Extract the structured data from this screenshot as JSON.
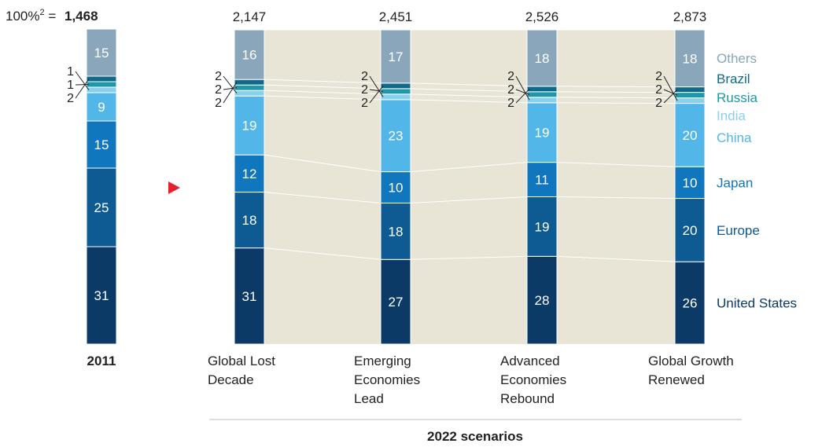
{
  "header": {
    "prefix": "100%",
    "superscript": "2",
    "equals": " =",
    "total": "1,468"
  },
  "footer_title": "2022 scenarios",
  "colors": {
    "United States": "#0b3a66",
    "Europe": "#0e5a92",
    "Japan": "#1077bf",
    "China": "#53b6e8",
    "India": "#8ad0ec",
    "Russia": "#1e97a9",
    "Brazil": "#0e6a88",
    "Others": "#8aa6bb",
    "background": "#e8e4d6",
    "arrow": "#e8202a",
    "connector": "#ffffff"
  },
  "chart_data": {
    "type": "stacked-bar",
    "segment_order": [
      "United States",
      "Europe",
      "Japan",
      "China",
      "India",
      "Russia",
      "Brazil",
      "Others"
    ],
    "bars": [
      {
        "label": "2011",
        "label_bold": true,
        "total": "1,468",
        "values": {
          "United States": 31,
          "Europe": 25,
          "Japan": 15,
          "China": 9,
          "India": 1,
          "Russia": 1,
          "Brazil": 2,
          "Others": 15
        }
      },
      {
        "label": "Global Lost Decade",
        "label_lines": [
          "Global Lost",
          "Decade"
        ],
        "total": "2,147",
        "values": {
          "United States": 31,
          "Europe": 18,
          "Japan": 12,
          "China": 19,
          "India": 2,
          "Russia": 2,
          "Brazil": 2,
          "Others": 16
        }
      },
      {
        "label": "Emerging Economies Lead",
        "label_lines": [
          "Emerging",
          "Economies",
          "Lead"
        ],
        "total": "2,451",
        "values": {
          "United States": 27,
          "Europe": 18,
          "Japan": 10,
          "China": 23,
          "India": 2,
          "Russia": 2,
          "Brazil": 2,
          "Others": 17
        }
      },
      {
        "label": "Advanced Economies Rebound",
        "label_lines": [
          "Advanced",
          "Economies",
          "Rebound"
        ],
        "total": "2,526",
        "values": {
          "United States": 28,
          "Europe": 19,
          "Japan": 11,
          "China": 19,
          "India": 2,
          "Russia": 2,
          "Brazil": 2,
          "Others": 18
        }
      },
      {
        "label": "Global Growth Renewed",
        "label_lines": [
          "Global Growth",
          "Renewed"
        ],
        "total": "2,873",
        "values": {
          "United States": 26,
          "Europe": 20,
          "Japan": 10,
          "China": 20,
          "India": 2,
          "Russia": 2,
          "Brazil": 2,
          "Others": 18
        }
      }
    ],
    "legend": [
      "Others",
      "Brazil",
      "Russia",
      "India",
      "China",
      "Japan",
      "Europe",
      "United States"
    ]
  }
}
